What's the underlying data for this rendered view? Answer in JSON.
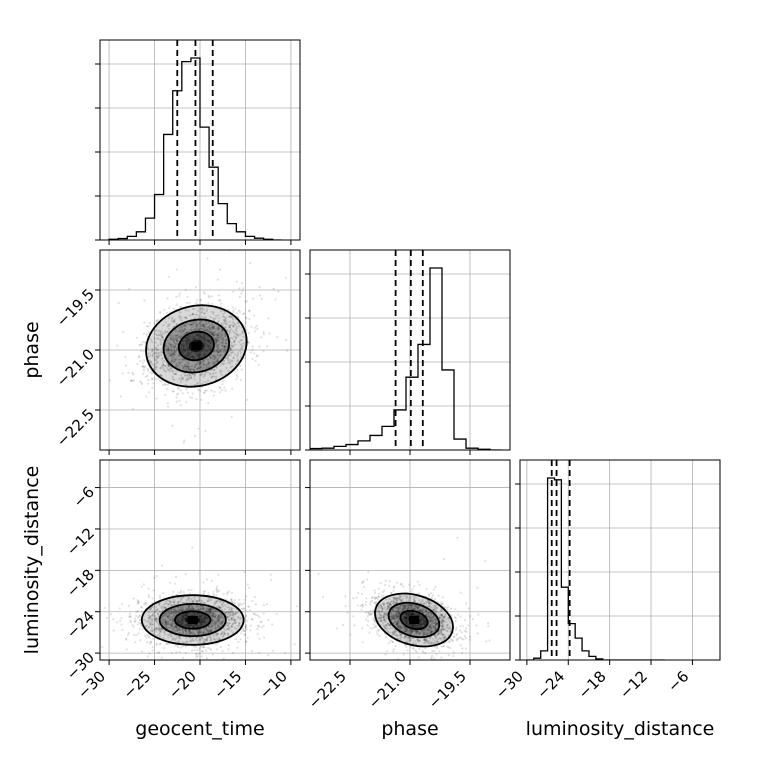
{
  "chart_data": {
    "type": "corner",
    "parameters": [
      "geocent_time",
      "phase",
      "luminosity_distance"
    ],
    "labels": {
      "geocent_time": "geocent_time",
      "phase": "phase",
      "luminosity_distance": "luminosity_distance"
    },
    "axes": {
      "geocent_time": {
        "range": [
          -31,
          -9
        ],
        "ticks": [
          -30,
          -25,
          -20,
          -15,
          -10
        ],
        "tick_labels": [
          "−30",
          "−25",
          "−20",
          "−15",
          "−10"
        ]
      },
      "phase": {
        "range": [
          -23.5,
          -18.5
        ],
        "ticks": [
          -22.5,
          -21.0,
          -19.5
        ],
        "tick_labels": [
          "−22.5",
          "−21.0",
          "−19.5"
        ]
      },
      "luminosity_distance": {
        "range": [
          -31,
          -2
        ],
        "ticks": [
          -30,
          -24,
          -18,
          -12,
          -6
        ],
        "tick_labels": [
          "−30",
          "−24",
          "−18",
          "−12",
          "−6"
        ]
      }
    },
    "histograms": {
      "geocent_time": {
        "bin_edges": [
          -30,
          -29,
          -28,
          -27,
          -26,
          -25,
          -24,
          -23,
          -22,
          -21,
          -20,
          -19,
          -18,
          -17,
          -16,
          -15,
          -14,
          -13,
          -12,
          -11
        ],
        "counts": [
          0.004,
          0.008,
          0.02,
          0.045,
          0.12,
          0.25,
          0.58,
          0.82,
          0.98,
          1.0,
          0.62,
          0.4,
          0.2,
          0.09,
          0.045,
          0.02,
          0.01,
          0.004,
          0.0
        ],
        "quantiles": [
          -22.5,
          -20.5,
          -18.6
        ]
      },
      "phase": {
        "bin_edges": [
          -23.5,
          -23.2,
          -22.9,
          -22.6,
          -22.3,
          -22.0,
          -21.7,
          -21.4,
          -21.1,
          -20.8,
          -20.5,
          -20.2,
          -19.9,
          -19.6,
          -19.3,
          -19.0,
          -18.7
        ],
        "counts": [
          0.008,
          0.01,
          0.02,
          0.03,
          0.05,
          0.08,
          0.13,
          0.22,
          0.4,
          0.58,
          1.0,
          0.44,
          0.06,
          0.01,
          0.004,
          0.0
        ],
        "quantiles": [
          -21.36,
          -20.98,
          -20.68
        ]
      },
      "luminosity_distance": {
        "bin_edges": [
          -30,
          -29,
          -28,
          -27,
          -26,
          -25,
          -24,
          -23,
          -22,
          -21,
          -20,
          -19,
          -18,
          -17,
          -16,
          -15,
          -14,
          -13,
          -12,
          -11,
          -10
        ],
        "counts": [
          0.0,
          0.01,
          0.05,
          1.0,
          0.99,
          0.4,
          0.2,
          0.12,
          0.05,
          0.02,
          0.006,
          0.0,
          0.0,
          0.0,
          0.0,
          0.0,
          0.0,
          0.0,
          0.0,
          0.0
        ],
        "quantiles": [
          -26.4,
          -25.7,
          -23.8
        ]
      }
    },
    "scatter_2d": [
      {
        "x": "geocent_time",
        "y": "phase",
        "center": [
          -20.4,
          -20.9
        ],
        "spread": [
          2.8,
          0.5
        ],
        "correlation": 0.25,
        "n_points": 1800
      },
      {
        "x": "geocent_time",
        "y": "luminosity_distance",
        "center": [
          -20.8,
          -25.2
        ],
        "spread": [
          2.8,
          1.8
        ],
        "correlation": 0.0,
        "n_points": 1800
      },
      {
        "x": "phase",
        "y": "luminosity_distance",
        "center": [
          -20.9,
          -25.2
        ],
        "spread": [
          0.5,
          1.8
        ],
        "correlation": -0.3,
        "n_points": 1800
      }
    ],
    "quantile_linestyle": "dashed",
    "grid": true
  }
}
